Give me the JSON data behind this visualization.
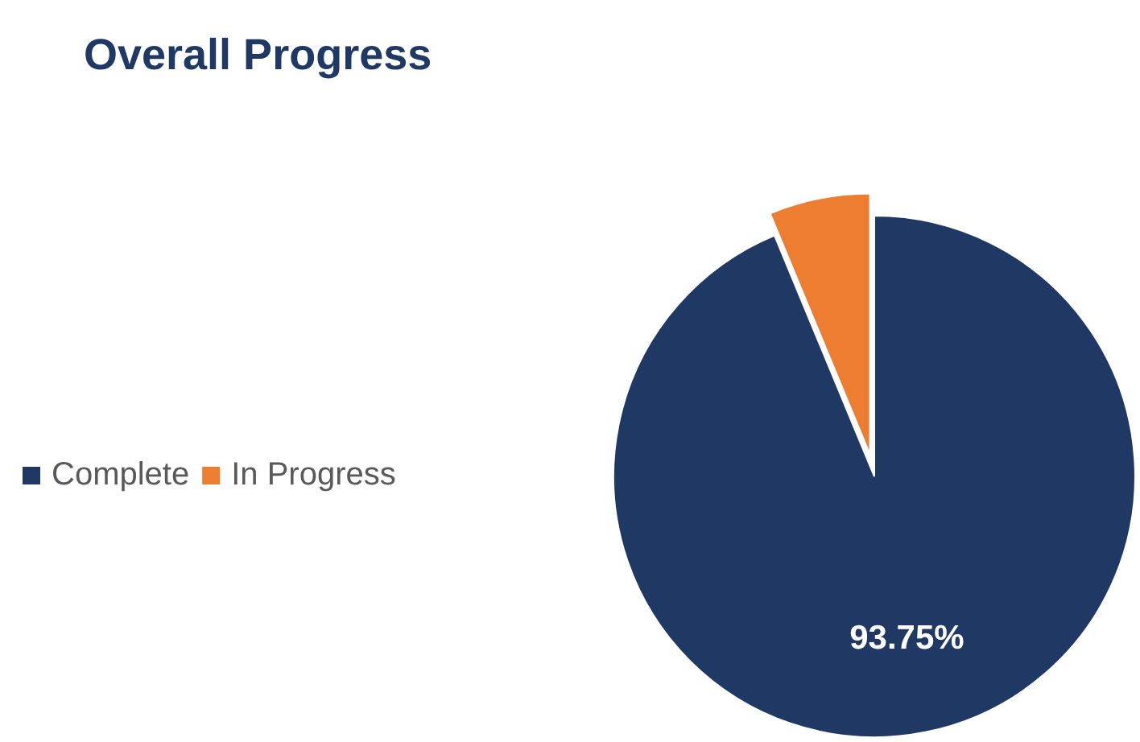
{
  "chart_data": {
    "type": "pie",
    "title": "Overall Progress",
    "categories": [
      "Complete",
      "In Progress"
    ],
    "values": [
      93.75,
      6.25
    ],
    "colors": [
      "#203864",
      "#ed7d31"
    ],
    "value_labels": [
      "93.75%",
      null
    ],
    "legend": "left"
  }
}
